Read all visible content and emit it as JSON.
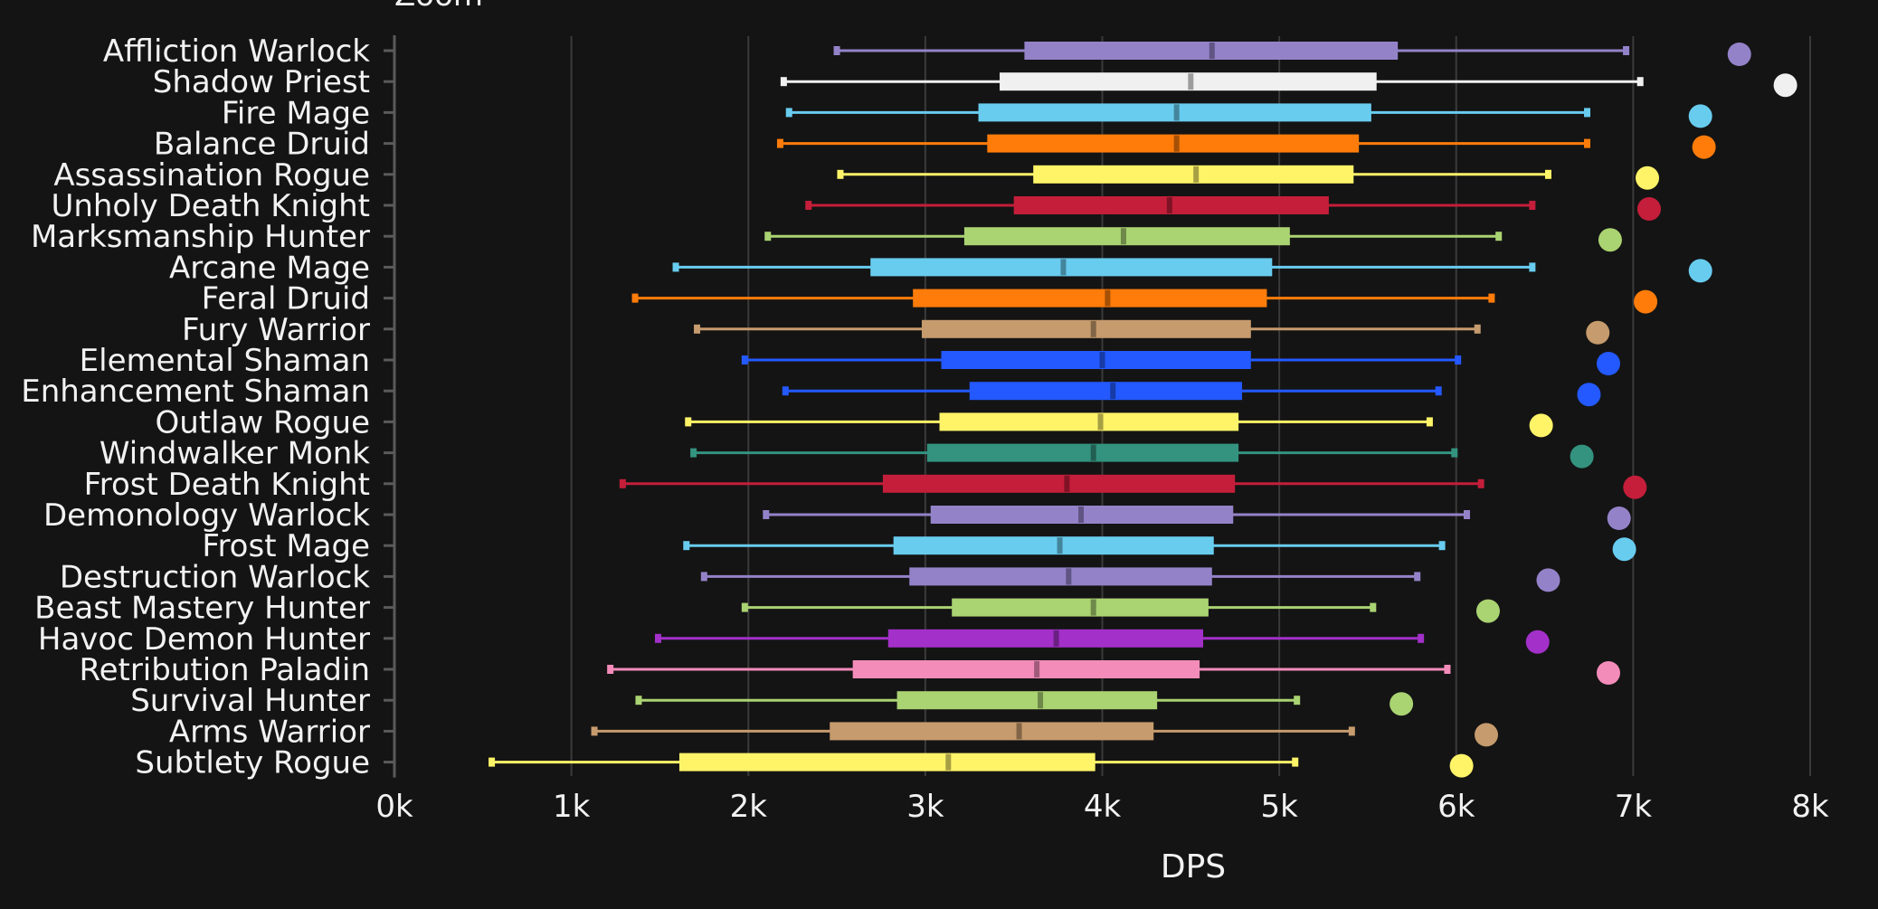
{
  "chart_data": {
    "type": "box",
    "top_text": "Zoom",
    "xlabel": "DPS",
    "ylabel": "",
    "xlim": [
      0,
      8000
    ],
    "x_ticks": [
      {
        "value": 0,
        "label": "0k"
      },
      {
        "value": 1000,
        "label": "1k"
      },
      {
        "value": 2000,
        "label": "2k"
      },
      {
        "value": 3000,
        "label": "3k"
      },
      {
        "value": 4000,
        "label": "4k"
      },
      {
        "value": 5000,
        "label": "5k"
      },
      {
        "value": 6000,
        "label": "6k"
      },
      {
        "value": 7000,
        "label": "7k"
      },
      {
        "value": 8000,
        "label": "8k"
      }
    ],
    "grid": "vertical",
    "series": [
      {
        "name": "Affliction Warlock",
        "color": "#9482c9",
        "min": 2500,
        "q1": 3560,
        "median": 4620,
        "q3": 5670,
        "max": 6960,
        "max_point": 7600
      },
      {
        "name": "Shadow Priest",
        "color": "#f0f0f0",
        "min": 2200,
        "q1": 3420,
        "median": 4500,
        "q3": 5550,
        "max": 7040,
        "max_point": 7860
      },
      {
        "name": "Fire Mage",
        "color": "#68ccef",
        "min": 2230,
        "q1": 3300,
        "median": 4420,
        "q3": 5520,
        "max": 6740,
        "max_point": 7380
      },
      {
        "name": "Balance Druid",
        "color": "#ff7c0a",
        "min": 2180,
        "q1": 3350,
        "median": 4420,
        "q3": 5450,
        "max": 6740,
        "max_point": 7400
      },
      {
        "name": "Assassination Rogue",
        "color": "#fff468",
        "min": 2520,
        "q1": 3610,
        "median": 4530,
        "q3": 5420,
        "max": 6520,
        "max_point": 7080
      },
      {
        "name": "Unholy Death Knight",
        "color": "#c41e3a",
        "min": 2340,
        "q1": 3500,
        "median": 4380,
        "q3": 5280,
        "max": 6430,
        "max_point": 7090
      },
      {
        "name": "Marksmanship Hunter",
        "color": "#aad372",
        "min": 2110,
        "q1": 3220,
        "median": 4120,
        "q3": 5060,
        "max": 6240,
        "max_point": 6870
      },
      {
        "name": "Arcane Mage",
        "color": "#68ccef",
        "min": 1590,
        "q1": 2690,
        "median": 3780,
        "q3": 4960,
        "max": 6430,
        "max_point": 7380
      },
      {
        "name": "Feral Druid",
        "color": "#ff7c0a",
        "min": 1360,
        "q1": 2930,
        "median": 4030,
        "q3": 4930,
        "max": 6200,
        "max_point": 7070
      },
      {
        "name": "Fury Warrior",
        "color": "#c69b6d",
        "min": 1710,
        "q1": 2980,
        "median": 3950,
        "q3": 4840,
        "max": 6120,
        "max_point": 6800
      },
      {
        "name": "Elemental Shaman",
        "color": "#2359ff",
        "min": 1980,
        "q1": 3090,
        "median": 4000,
        "q3": 4840,
        "max": 6010,
        "max_point": 6860
      },
      {
        "name": "Enhancement Shaman",
        "color": "#2359ff",
        "min": 2210,
        "q1": 3250,
        "median": 4060,
        "q3": 4790,
        "max": 5900,
        "max_point": 6750
      },
      {
        "name": "Outlaw Rogue",
        "color": "#fff468",
        "min": 1660,
        "q1": 3080,
        "median": 3990,
        "q3": 4770,
        "max": 5850,
        "max_point": 6480
      },
      {
        "name": "Windwalker Monk",
        "color": "#33937f",
        "min": 1690,
        "q1": 3010,
        "median": 3950,
        "q3": 4770,
        "max": 5990,
        "max_point": 6710
      },
      {
        "name": "Frost Death Knight",
        "color": "#c41e3a",
        "min": 1290,
        "q1": 2760,
        "median": 3800,
        "q3": 4750,
        "max": 6140,
        "max_point": 7010
      },
      {
        "name": "Demonology Warlock",
        "color": "#9482c9",
        "min": 2100,
        "q1": 3030,
        "median": 3880,
        "q3": 4740,
        "max": 6060,
        "max_point": 6920
      },
      {
        "name": "Frost Mage",
        "color": "#68ccef",
        "min": 1650,
        "q1": 2820,
        "median": 3760,
        "q3": 4630,
        "max": 5920,
        "max_point": 6950
      },
      {
        "name": "Destruction Warlock",
        "color": "#9482c9",
        "min": 1750,
        "q1": 2910,
        "median": 3810,
        "q3": 4620,
        "max": 5780,
        "max_point": 6520
      },
      {
        "name": "Beast Mastery Hunter",
        "color": "#aad372",
        "min": 1980,
        "q1": 3150,
        "median": 3950,
        "q3": 4600,
        "max": 5530,
        "max_point": 6180
      },
      {
        "name": "Havoc Demon Hunter",
        "color": "#a330c9",
        "min": 1490,
        "q1": 2790,
        "median": 3740,
        "q3": 4570,
        "max": 5800,
        "max_point": 6460
      },
      {
        "name": "Retribution Paladin",
        "color": "#f48cba",
        "min": 1220,
        "q1": 2590,
        "median": 3630,
        "q3": 4550,
        "max": 5950,
        "max_point": 6860
      },
      {
        "name": "Survival Hunter",
        "color": "#aad372",
        "min": 1380,
        "q1": 2840,
        "median": 3650,
        "q3": 4310,
        "max": 5100,
        "max_point": 5690
      },
      {
        "name": "Arms Warrior",
        "color": "#c69b6d",
        "min": 1130,
        "q1": 2460,
        "median": 3530,
        "q3": 4290,
        "max": 5410,
        "max_point": 6170
      },
      {
        "name": "Subtlety Rogue",
        "color": "#fff468",
        "min": 550,
        "q1": 1610,
        "median": 3130,
        "q3": 3960,
        "max": 5090,
        "max_point": 6030
      }
    ]
  },
  "colors": {
    "background": "#141414",
    "grid": "#3a3a3a",
    "text": "#f2f2f2",
    "axis": "#5a5a5a"
  }
}
